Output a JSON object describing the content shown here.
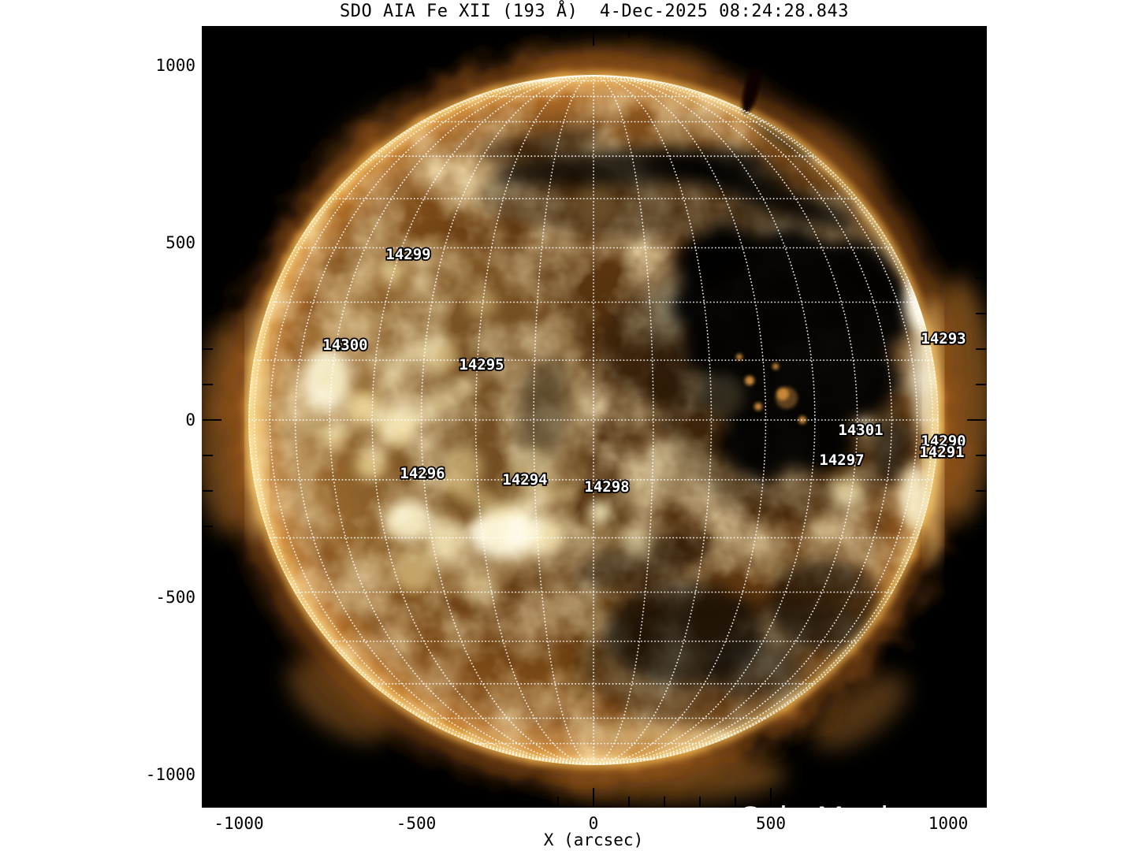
{
  "title": "SDO AIA Fe XII (193 Å)  4-Dec-2025 08:24:28.843",
  "watermark": "SolarMonitor.org",
  "axes": {
    "x_title": "X (arcsec)",
    "x_ticks": [
      {
        "value": -1000,
        "label": "-1000"
      },
      {
        "value": -500,
        "label": "-500"
      },
      {
        "value": 0,
        "label": "0"
      },
      {
        "value": 500,
        "label": "500"
      },
      {
        "value": 1000,
        "label": "1000"
      }
    ],
    "y_ticks": [
      {
        "value": 1000,
        "label": "1000"
      },
      {
        "value": 500,
        "label": "500"
      },
      {
        "value": 0,
        "label": "0"
      },
      {
        "value": -500,
        "label": "-500"
      },
      {
        "value": -1000,
        "label": "-1000"
      }
    ],
    "minor_tick_step_arcsec": 100,
    "x_range_arcsec": [
      -1104,
      1109
    ],
    "y_range_arcsec": [
      -1100,
      1111
    ]
  },
  "active_regions": [
    {
      "noaa": "14299",
      "x_arcsec": -522,
      "y_arcsec": 469
    },
    {
      "noaa": "14300",
      "x_arcsec": -700,
      "y_arcsec": 213
    },
    {
      "noaa": "14295",
      "x_arcsec": -316,
      "y_arcsec": 158
    },
    {
      "noaa": "14293",
      "x_arcsec": 987,
      "y_arcsec": 231
    },
    {
      "noaa": "14301",
      "x_arcsec": 753,
      "y_arcsec": -27
    },
    {
      "noaa": "14290",
      "x_arcsec": 987,
      "y_arcsec": -58
    },
    {
      "noaa": "14291",
      "x_arcsec": 982,
      "y_arcsec": -89
    },
    {
      "noaa": "14297",
      "x_arcsec": 700,
      "y_arcsec": -111
    },
    {
      "noaa": "14296",
      "x_arcsec": -482,
      "y_arcsec": -149
    },
    {
      "noaa": "14294",
      "x_arcsec": -193,
      "y_arcsec": -167
    },
    {
      "noaa": "14298",
      "x_arcsec": 38,
      "y_arcsec": -187
    }
  ],
  "grid": {
    "spacing_deg": 10,
    "style": "dotted",
    "color": "#ffffff"
  },
  "solar": {
    "observatory": "SDO",
    "instrument": "AIA",
    "line": "Fe XII (193 Å)",
    "datetime": "4-Dec-2025 08:24:28.843",
    "disk_radius_arcsec": 971
  },
  "colors": {
    "page_bg": "#ffffff",
    "plot_bg": "#000000",
    "axis_text": "#000000",
    "sun_gold": "#d08a34",
    "sun_bright": "#ffeebb",
    "coronal_hole": "#050200",
    "grid": "#ffffff",
    "ar_label_fill": "#ffffff",
    "ar_label_outline": "#000000",
    "watermark": "#f4f4f4"
  },
  "chart_data": {
    "type": "heatmap",
    "title": "SDO AIA Fe XII (193 Å)  4-Dec-2025 08:24:28.843",
    "xlabel": "X (arcsec)",
    "ylabel": "",
    "xlim": [
      -1104,
      1109
    ],
    "ylim": [
      -1100,
      1111
    ],
    "x_ticks": [
      -1000,
      -500,
      0,
      500,
      1000
    ],
    "y_ticks": [
      1000,
      500,
      0,
      -500,
      -1000
    ],
    "grid": "heliographic graticule, 10 deg spacing, white dotted, B0~0",
    "legend_position": "none",
    "image_description": "Full-disk solar corona EUV image, gold/sepia colormap; bright active-region plage on east (left) half and at the west limb; large very dark coronal hole right of disk center spanning roughly x 250..900, y -200..500 arcsec; dark filament channels across the north; bright limb ring with fluffy outer corona glow",
    "annotations": [
      {
        "label": "14299",
        "x": -522,
        "y": 469
      },
      {
        "label": "14300",
        "x": -700,
        "y": 213
      },
      {
        "label": "14295",
        "x": -316,
        "y": 158
      },
      {
        "label": "14293",
        "x": 987,
        "y": 231
      },
      {
        "label": "14301",
        "x": 753,
        "y": -27
      },
      {
        "label": "14290",
        "x": 987,
        "y": -58
      },
      {
        "label": "14291",
        "x": 982,
        "y": -89
      },
      {
        "label": "14297",
        "x": 700,
        "y": -111
      },
      {
        "label": "14296",
        "x": -482,
        "y": -149
      },
      {
        "label": "14294",
        "x": -193,
        "y": -167
      },
      {
        "label": "14298",
        "x": 38,
        "y": -187
      }
    ]
  }
}
